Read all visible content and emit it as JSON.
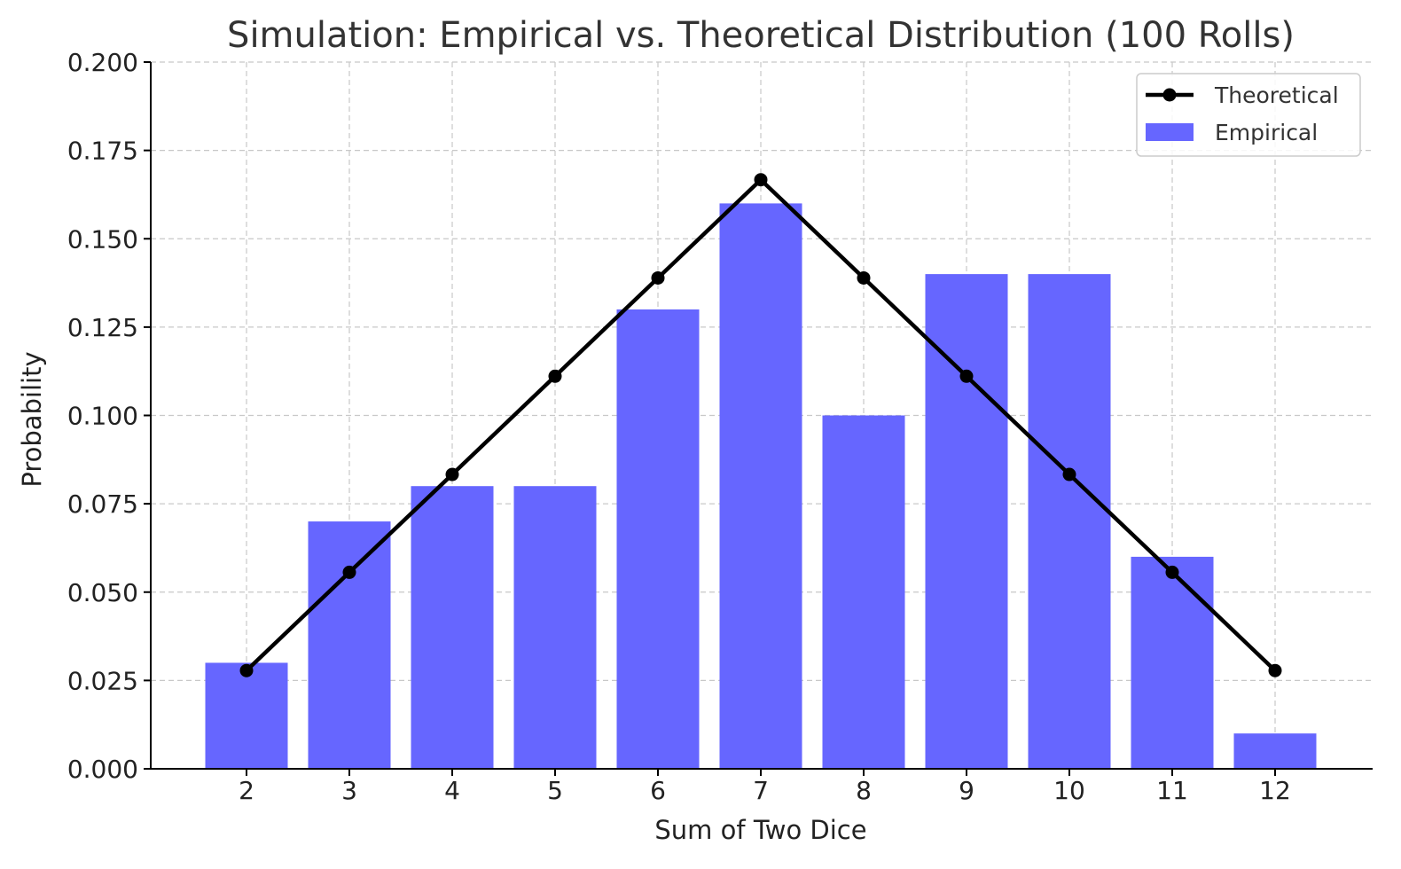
{
  "chart_data": {
    "type": "bar",
    "title": "Simulation: Empirical vs. Theoretical Distribution (100 Rolls)",
    "xlabel": "Sum of Two Dice",
    "ylabel": "Probability",
    "categories": [
      "2",
      "3",
      "4",
      "5",
      "6",
      "7",
      "8",
      "9",
      "10",
      "11",
      "12"
    ],
    "ylim": [
      0,
      0.2
    ],
    "yticks": [
      "0.000",
      "0.025",
      "0.050",
      "0.075",
      "0.100",
      "0.125",
      "0.150",
      "0.175",
      "0.200"
    ],
    "grid": true,
    "legend_position": "top-right",
    "series": [
      {
        "name": "Empirical",
        "kind": "bar",
        "color": "#6666ff",
        "values": [
          0.03,
          0.07,
          0.08,
          0.08,
          0.13,
          0.16,
          0.1,
          0.14,
          0.14,
          0.06,
          0.01
        ]
      },
      {
        "name": "Theoretical",
        "kind": "line",
        "color": "#000000",
        "marker": "circle",
        "values": [
          0.0278,
          0.0556,
          0.0833,
          0.1111,
          0.1389,
          0.1667,
          0.1389,
          0.1111,
          0.0833,
          0.0556,
          0.0278
        ]
      }
    ]
  }
}
